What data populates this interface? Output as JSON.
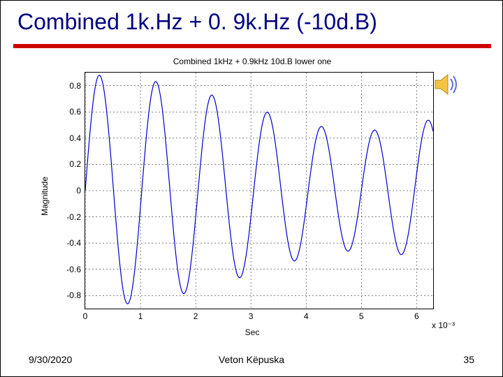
{
  "title": "Combined 1k.Hz + 0. 9k.Hz (-10d.B)",
  "title_color": "#000080",
  "title_fontsize": 32,
  "underline_color": "#cc0000",
  "footer": {
    "date": "9/30/2020",
    "author": "Veton Këpuska",
    "page": "35"
  },
  "speaker_icon": {
    "fill": "#f5c542",
    "wave": "#5b6edc"
  },
  "chart": {
    "type": "line",
    "title": "Combined 1kHz + 0.9kHz 10d.B lower   one",
    "xlabel": "Sec",
    "ylabel": "Magnitude",
    "x_exponent": "x 10⁻³",
    "xlim": [
      0,
      6.3
    ],
    "ylim": [
      -0.9,
      0.9
    ],
    "xticks": [
      0,
      1,
      2,
      3,
      4,
      5,
      6
    ],
    "xtick_labels": [
      "0",
      "1",
      "2",
      "3",
      "4",
      "5",
      "6"
    ],
    "yticks": [
      -0.8,
      -0.6,
      -0.4,
      -0.2,
      0,
      0.2,
      0.4,
      0.6,
      0.8
    ],
    "ytick_labels": [
      "-0.8",
      "-0.6",
      "-0.4",
      "-0.2",
      "0",
      "0.2",
      "0.4",
      "0.6",
      "0.8"
    ],
    "grid_color": "#000000",
    "grid_dash": "2,3",
    "background_color": "#ffffff",
    "line_color": "#0000cc",
    "line_width": 1.2,
    "signal": {
      "f1_hz": 1000,
      "a1": 1.0,
      "f2_hz": 900,
      "a2_db": -10,
      "sample_step_ms": 0.01,
      "normalize_peak": 0.88
    },
    "label_fontsize": 12,
    "tick_fontsize": 12
  }
}
